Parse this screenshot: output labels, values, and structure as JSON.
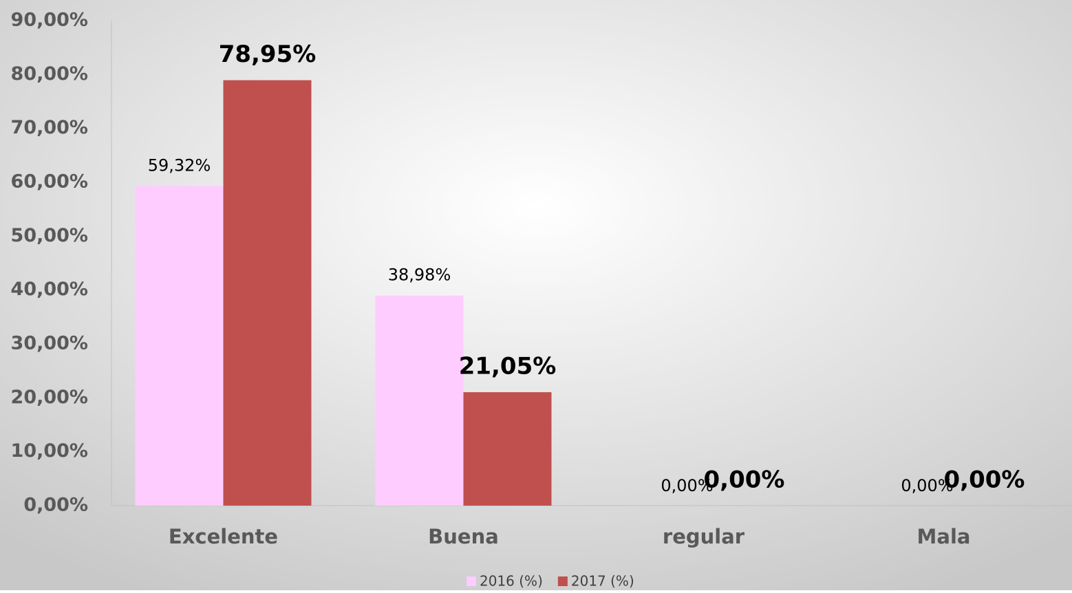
{
  "chart_data": {
    "type": "bar",
    "categories": [
      "Excelente",
      "Buena",
      "regular",
      "Mala"
    ],
    "series": [
      {
        "name": "2016 (%)",
        "color": "#ffccff",
        "values": [
          59.32,
          38.98,
          0,
          0
        ],
        "value_labels": [
          "59,32%",
          "38,98%",
          "0,00%",
          "0,00%"
        ]
      },
      {
        "name": "2017 (%)",
        "color": "#c0504d",
        "values": [
          78.95,
          21.05,
          0,
          0
        ],
        "value_labels": [
          "78,95%",
          "21,05%",
          "0,00%",
          "0,00%"
        ]
      }
    ],
    "ylim": [
      0,
      90
    ],
    "yticks": [
      {
        "value": 0,
        "label": "0,00%"
      },
      {
        "value": 10,
        "label": "10,00%"
      },
      {
        "value": 20,
        "label": "20,00%"
      },
      {
        "value": 30,
        "label": "30,00%"
      },
      {
        "value": 40,
        "label": "40,00%"
      },
      {
        "value": 50,
        "label": "50,00%"
      },
      {
        "value": 60,
        "label": "60,00%"
      },
      {
        "value": 70,
        "label": "70,00%"
      },
      {
        "value": 80,
        "label": "80,00%"
      },
      {
        "value": 90,
        "label": "90,00%"
      }
    ],
    "grid": false,
    "legend": "bottom"
  }
}
